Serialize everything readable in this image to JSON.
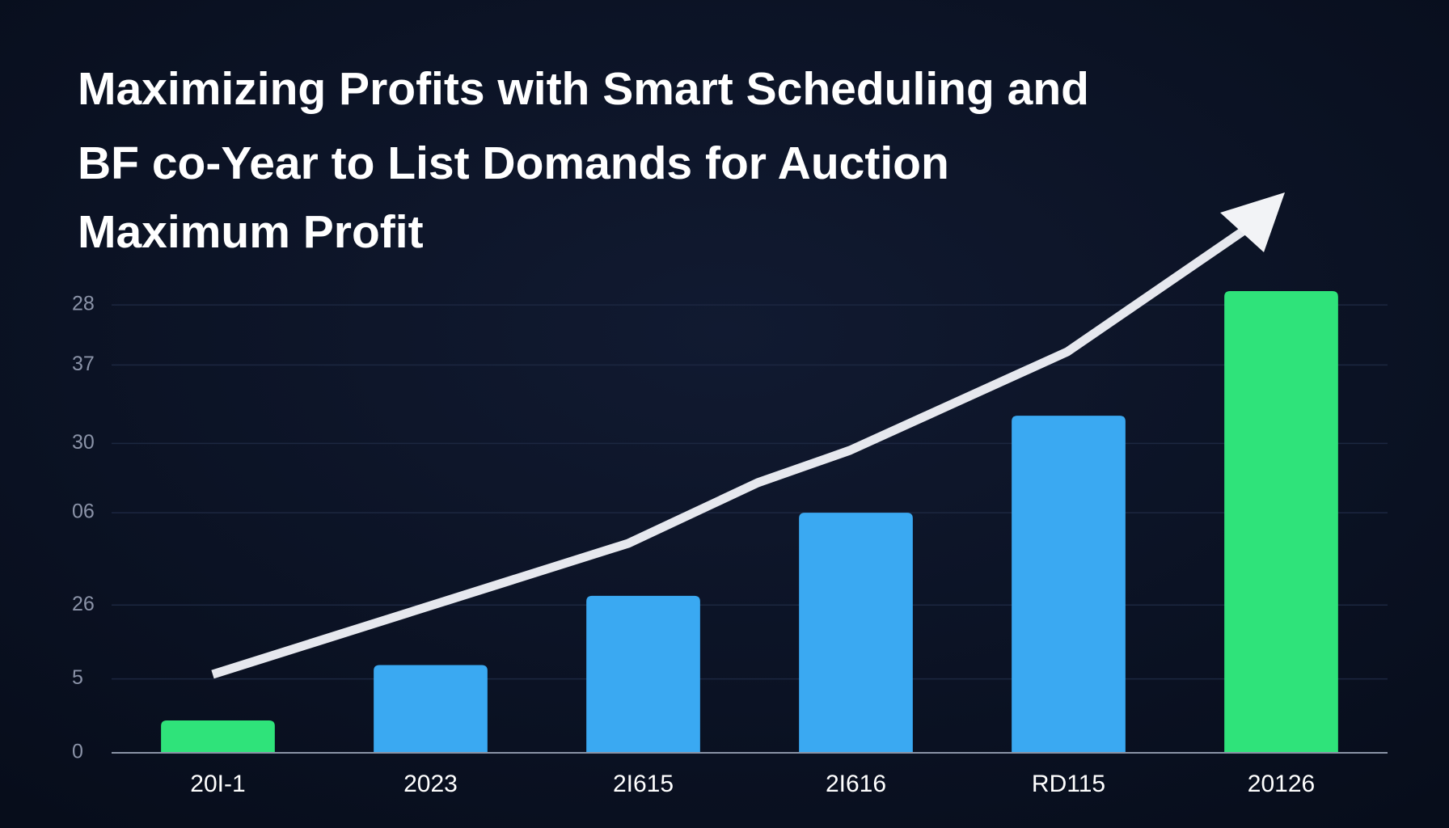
{
  "chart_data": {
    "type": "bar",
    "title": [
      "Maximizing Profits with Smart Scheduling and",
      "BF co-Year to List Domands for Auction",
      "Maximum Profit"
    ],
    "categories": [
      "20I-1",
      "2023",
      "2I615",
      "2I616",
      "RD115",
      "20126"
    ],
    "values": [
      7,
      19,
      34,
      52,
      73,
      100
    ],
    "colors": [
      "#2fe37a",
      "#3aa9f2",
      "#3aa9f2",
      "#3aa9f2",
      "#3aa9f2",
      "#2fe37a"
    ],
    "ylim": [
      0,
      100
    ],
    "yticks": [
      0,
      {
        "value": 16,
        "label": "5"
      },
      {
        "value": 32,
        "label": "26"
      },
      {
        "value": 52,
        "label": "06"
      },
      {
        "value": 67,
        "label": "30"
      },
      {
        "value": 84,
        "label": "37"
      },
      {
        "value": 97,
        "label": "28"
      }
    ],
    "grid": true
  }
}
